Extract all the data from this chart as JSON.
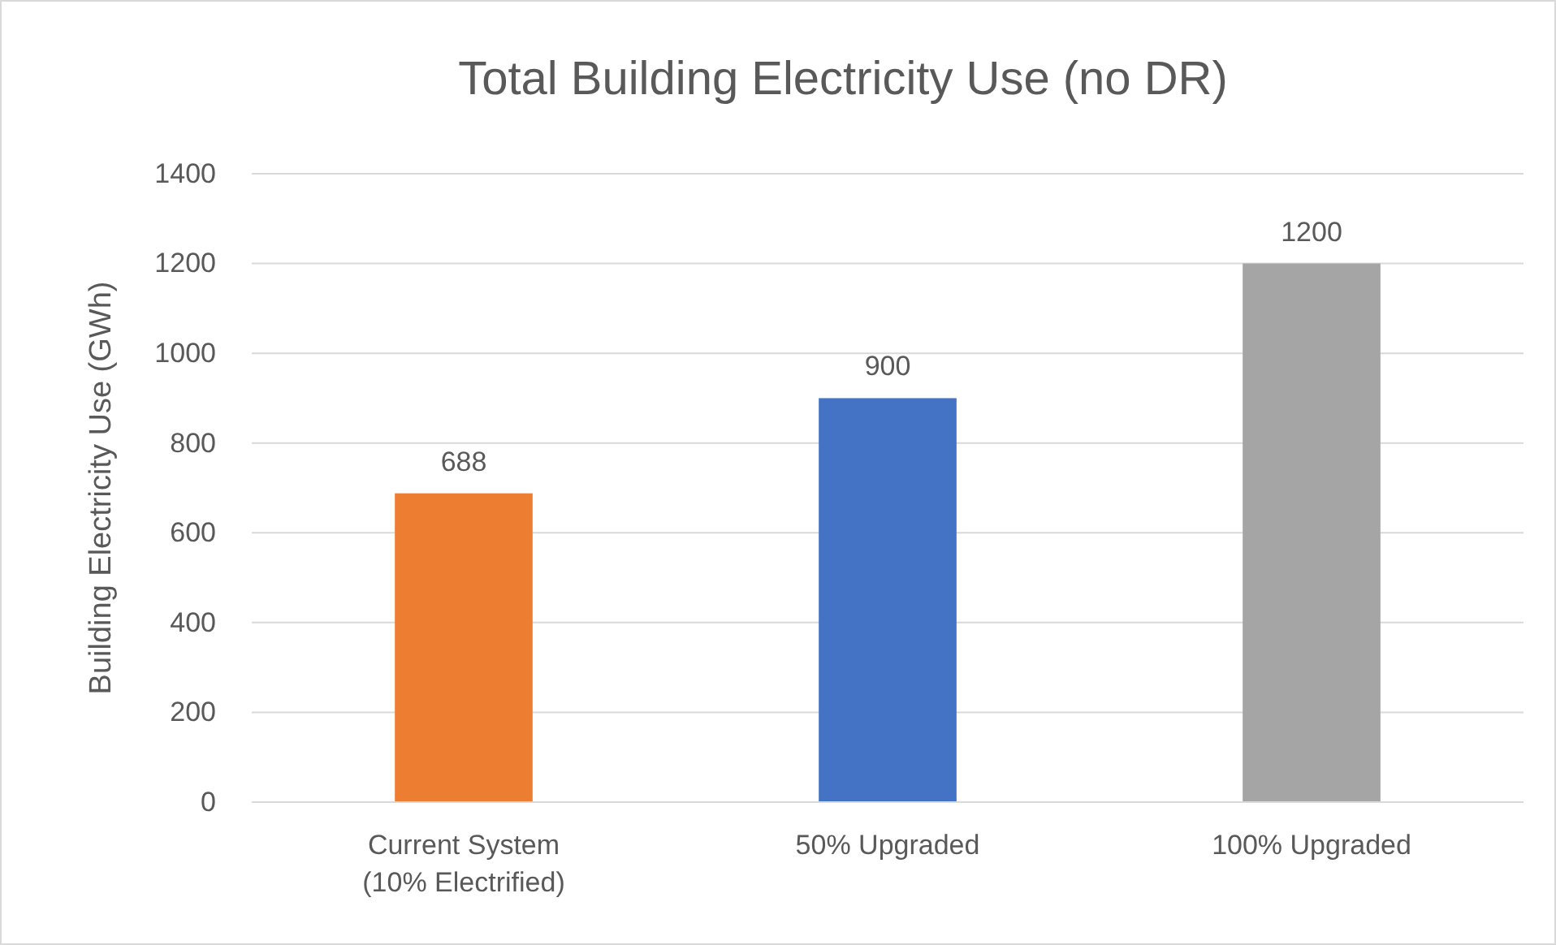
{
  "chart_data": {
    "type": "bar",
    "title": "Total Building Electricity Use (no DR)",
    "ylabel": "Building Electricity Use (GWh)",
    "categories": [
      "Current System (10% Electrified)",
      "50% Upgraded",
      "100% Upgraded"
    ],
    "values": [
      688,
      900,
      1200
    ],
    "colors": [
      "#ed7d31",
      "#4472c4",
      "#a5a5a5"
    ],
    "ylim": [
      0,
      1400
    ],
    "yticks": [
      0,
      200,
      400,
      600,
      800,
      1000,
      1200,
      1400
    ],
    "grid": "y",
    "data_labels": true
  }
}
